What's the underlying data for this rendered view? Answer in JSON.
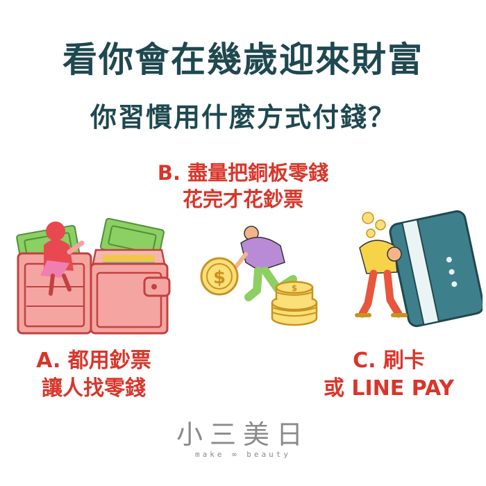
{
  "title": {
    "line1": "看你會在幾歲迎來財富",
    "line2": "你習慣用什麼方式付錢？"
  },
  "options": {
    "a": {
      "line1": "A. 都用鈔票",
      "line2": "讓人找零錢",
      "illustration": "wallet-icon"
    },
    "b": {
      "line1": "B. 盡量把銅板零錢",
      "line2": "花完才花鈔票",
      "illustration": "coins-icon"
    },
    "c": {
      "line1": "C. 刷卡",
      "line2": "或 LINE PAY",
      "illustration": "credit-card-icon"
    }
  },
  "brand": {
    "name": "小三美日",
    "tagline": "make ∞ beauty"
  },
  "colors": {
    "title": "#1f4850",
    "option_text": "#d9352a",
    "brand": "#8a8a8a"
  }
}
